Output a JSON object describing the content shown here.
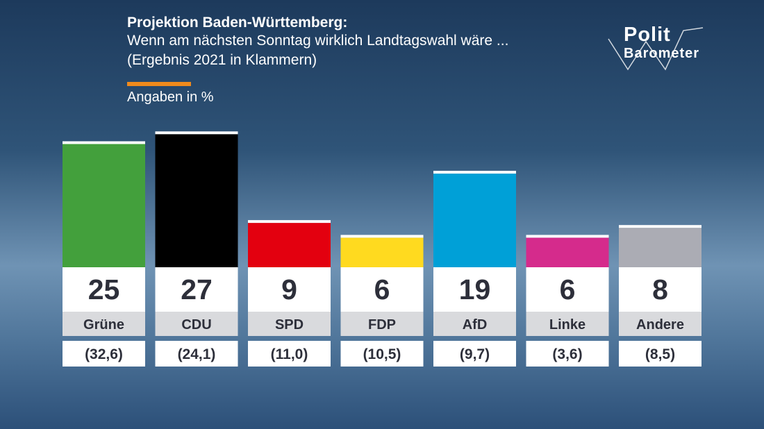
{
  "header": {
    "title": "Projektion Baden-Württemberg:",
    "subtitle_line1": "Wenn am nächsten Sonntag wirklich Landtagswahl wäre ...",
    "subtitle_line2": "(Ergebnis 2021 in Klammern)",
    "units": "Angaben in %"
  },
  "logo": {
    "word1": "Polit",
    "word2": "Barometer"
  },
  "colors": {
    "accent": "#f08a1c",
    "label_bg": "#d9dadd",
    "value_text": "#2d2f3a"
  },
  "chart_data": {
    "type": "bar",
    "categories": [
      "Grüne",
      "CDU",
      "SPD",
      "FDP",
      "AfD",
      "Linke",
      "Andere"
    ],
    "values": [
      25,
      27,
      9,
      6,
      19,
      6,
      8
    ],
    "value_labels": [
      "25",
      "27",
      "9",
      "6",
      "19",
      "6",
      "8"
    ],
    "previous_labels": [
      "(32,6)",
      "(24,1)",
      "(11,0)",
      "(10,5)",
      "(9,7)",
      "(3,6)",
      "(8,5)"
    ],
    "colors": [
      "#43a03c",
      "#000000",
      "#e3000f",
      "#ffda1f",
      "#00a0d7",
      "#d52b8c",
      "#abacb4"
    ]
  }
}
